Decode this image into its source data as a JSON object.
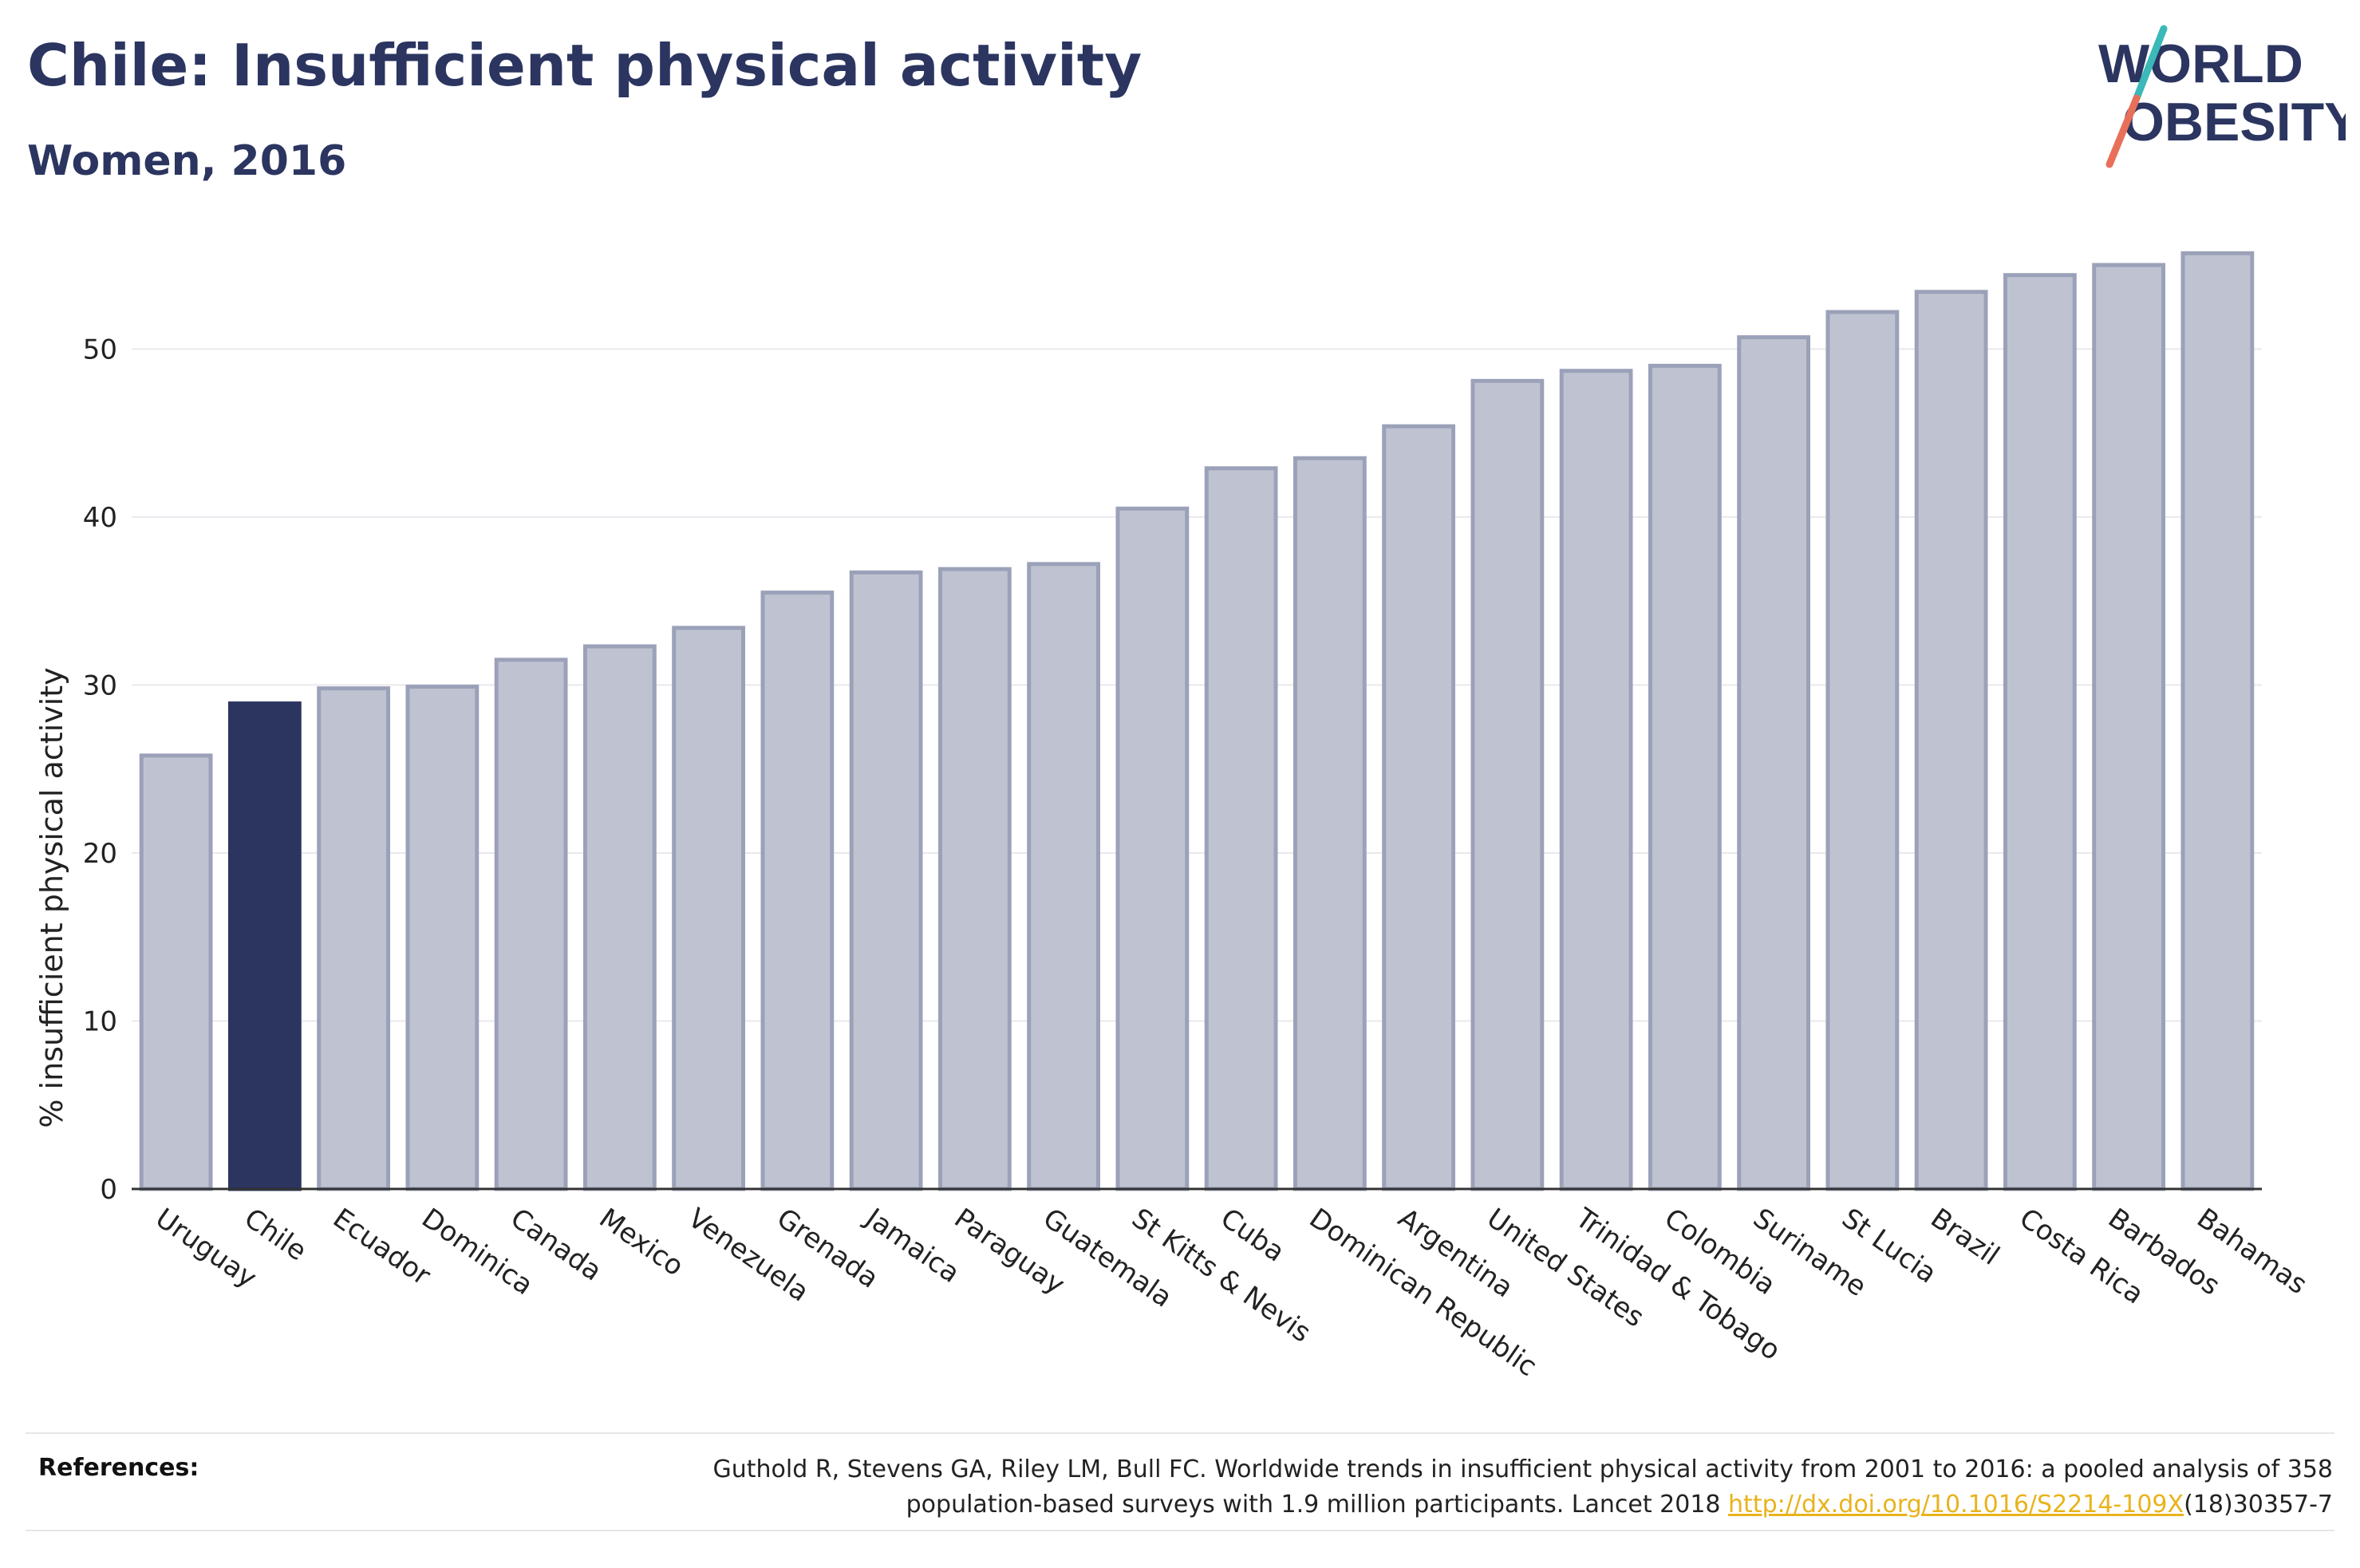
{
  "header": {
    "title": "Chile: Insufficient physical activity",
    "subtitle": "Women, 2016"
  },
  "logo": {
    "line1": "WORLD",
    "line2": "OBESITY",
    "text_color": "#2b3560",
    "slash_colors": [
      "#3bb8b8",
      "#e8705a"
    ]
  },
  "colors": {
    "highlight_bar": "#2b3560",
    "other_bar_fill": "#bfc3d1",
    "other_bar_stroke": "#9ba1b8",
    "link": "#e8b31c"
  },
  "chart_data": {
    "type": "bar",
    "ylabel": "% insufficient physical activity",
    "ylim": [
      0,
      57
    ],
    "yticks": [
      0,
      10,
      20,
      30,
      40,
      50
    ],
    "grid": true,
    "highlight": "Chile",
    "categories": [
      "Uruguay",
      "Chile",
      "Ecuador",
      "Dominica",
      "Canada",
      "Mexico",
      "Venezuela",
      "Grenada",
      "Jamaica",
      "Paraguay",
      "Guatemala",
      "St Kitts & Nevis",
      "Cuba",
      "Dominican Republic",
      "Argentina",
      "United States",
      "Trinidad & Tobago",
      "Colombia",
      "Suriname",
      "St Lucia",
      "Brazil",
      "Costa Rica",
      "Barbados",
      "Bahamas"
    ],
    "values": [
      25.8,
      28.9,
      29.8,
      29.9,
      31.5,
      32.3,
      33.4,
      35.5,
      36.7,
      36.9,
      37.2,
      40.5,
      42.9,
      43.5,
      45.4,
      48.1,
      48.7,
      49.0,
      50.7,
      52.2,
      53.4,
      54.4,
      55.0,
      55.7
    ]
  },
  "references": {
    "label": "References:",
    "line1": "Guthold R, Stevens GA, Riley LM, Bull FC. Worldwide trends in insufficient physical activity from 2001 to 2016: a pooled analysis of 358",
    "line2_prefix": "population-based surveys with 1.9 million participants. Lancet 2018 ",
    "link": "http://dx.doi.org/10.1016/S2214-109X",
    "line2_suffix": "(18)30357-7"
  }
}
